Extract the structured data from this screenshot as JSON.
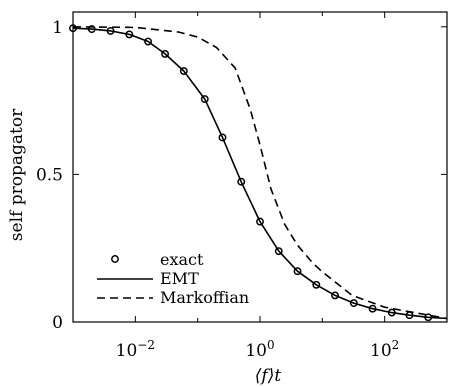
{
  "chart_data": {
    "type": "line",
    "title": "",
    "xlabel": "⟨f⟩t",
    "ylabel": "self propagator",
    "x_scale": "log",
    "xlim": [
      0.001,
      1000
    ],
    "ylim": [
      0,
      1.05
    ],
    "x_ticks": [
      {
        "value": 0.01,
        "base": "10",
        "exp": "−2"
      },
      {
        "value": 1,
        "base": "10",
        "exp": "0"
      },
      {
        "value": 100,
        "base": "10",
        "exp": "2"
      }
    ],
    "y_ticks": [
      {
        "value": 0,
        "label": "0"
      },
      {
        "value": 0.5,
        "label": "0.5"
      },
      {
        "value": 1,
        "label": "1"
      }
    ],
    "grid": false,
    "legend_position": "bottom-left",
    "series": [
      {
        "name": "exact",
        "style": "markers",
        "marker": "circle",
        "x": [
          0.001,
          0.002,
          0.004,
          0.008,
          0.016,
          0.03,
          0.06,
          0.13,
          0.25,
          0.5,
          1.0,
          2.0,
          4.0,
          8.0,
          16,
          32,
          64,
          130,
          250,
          500
        ],
        "y": [
          0.995,
          0.992,
          0.986,
          0.974,
          0.95,
          0.908,
          0.85,
          0.755,
          0.625,
          0.475,
          0.34,
          0.24,
          0.172,
          0.126,
          0.09,
          0.064,
          0.045,
          0.032,
          0.023,
          0.016
        ]
      },
      {
        "name": "EMT",
        "style": "solid",
        "x": [
          0.001,
          0.002,
          0.004,
          0.008,
          0.016,
          0.03,
          0.06,
          0.13,
          0.25,
          0.5,
          1.0,
          2.0,
          4.0,
          8.0,
          16,
          32,
          64,
          130,
          250,
          500,
          1000
        ],
        "y": [
          0.995,
          0.992,
          0.986,
          0.974,
          0.95,
          0.908,
          0.85,
          0.755,
          0.625,
          0.475,
          0.34,
          0.24,
          0.172,
          0.126,
          0.09,
          0.064,
          0.045,
          0.032,
          0.023,
          0.016,
          0.012
        ]
      },
      {
        "name": "Markoffian",
        "style": "dashed",
        "x": [
          0.001,
          0.01,
          0.05,
          0.1,
          0.2,
          0.4,
          0.7,
          1.0,
          1.5,
          2.5,
          4.0,
          7.0,
          10,
          30,
          100,
          1000
        ],
        "y": [
          1.0,
          0.998,
          0.982,
          0.965,
          0.93,
          0.86,
          0.72,
          0.6,
          0.45,
          0.33,
          0.26,
          0.2,
          0.17,
          0.09,
          0.05,
          0.012
        ]
      }
    ]
  }
}
